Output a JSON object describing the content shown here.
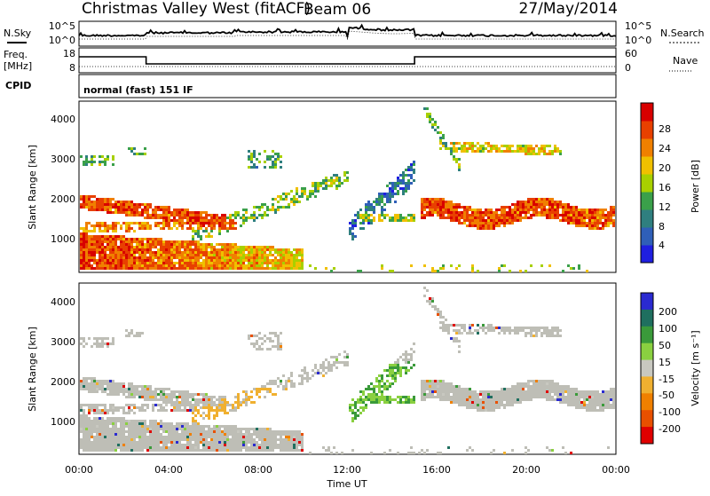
{
  "header": {
    "title": "Christmas Valley West (fitACF)",
    "beam": "Beam 06",
    "date": "27/May/2014"
  },
  "colors": {
    "power_scale": [
      "#1f1fe0",
      "#2f5fb8",
      "#2f7f7f",
      "#3aa04a",
      "#a8d000",
      "#f0c000",
      "#f08000",
      "#e84000",
      "#d80000"
    ],
    "velocity_scale": [
      "#2a2ad0",
      "#1f6f5f",
      "#3a9a3a",
      "#8ad040",
      "#c8c8c0",
      "#f0b030",
      "#f08000",
      "#e85000",
      "#e00000"
    ],
    "ground_scatter": "#bebeb6"
  },
  "chart_data": [
    {
      "type": "line",
      "panel": "sky-search-noise",
      "labels": {
        "left": "N.Sky",
        "right": "N.Search"
      },
      "y_ticks_left": [
        "10^5",
        "10^0"
      ],
      "y_ticks_right": [
        "10^5",
        "10^0"
      ]
    },
    {
      "type": "line",
      "panel": "frequency-nave",
      "labels": {
        "left_top": "Freq.",
        "left_bottom": "[MHz]",
        "right": "Nave"
      },
      "y_ticks_left": [
        "18",
        "8"
      ],
      "y_ticks_right": [
        "60",
        "0"
      ],
      "step_changes_hours": [
        3.0,
        15.0
      ]
    },
    {
      "type": "table",
      "panel": "cpid",
      "label": "CPID",
      "value": "normal (fast) 151 IF"
    },
    {
      "type": "heatmap",
      "panel": "power",
      "ylabel": "Slant Range [km]",
      "yticks": [
        "4000",
        "3000",
        "2000",
        "1000"
      ],
      "ylim": [
        180,
        4500
      ],
      "colorbar_label": "Power [dB]",
      "colorbar_ticks": [
        "28",
        "24",
        "20",
        "16",
        "12",
        "8",
        "4"
      ],
      "features": [
        {
          "name": "early low band",
          "x_start_h": 0.0,
          "x_end_h": 10.0,
          "y_start_km": 300,
          "y_end_km": 1100,
          "level": "high"
        },
        {
          "name": "mid band",
          "x_start_h": 0.0,
          "x_end_h": 6.0,
          "y_start_km": 1200,
          "y_end_km": 2200,
          "level": "high"
        },
        {
          "name": "rising arc",
          "x_start_h": 7.0,
          "x_end_h": 14.0,
          "y_start_km": 1000,
          "y_end_km": 2800,
          "level": "low"
        },
        {
          "name": "late band",
          "x_start_h": 15.2,
          "x_end_h": 24.0,
          "y_start_km": 1400,
          "y_end_km": 2100,
          "level": "high"
        },
        {
          "name": "late upper band",
          "x_start_h": 16.0,
          "x_end_h": 21.5,
          "y_start_km": 3200,
          "y_end_km": 3600,
          "level": "medium"
        }
      ]
    },
    {
      "type": "heatmap",
      "panel": "velocity",
      "ylabel": "Slant Range [km]",
      "yticks": [
        "4000",
        "3000",
        "2000",
        "1000"
      ],
      "ylim": [
        180,
        4500
      ],
      "colorbar_label": "Velocity [m s⁻¹]",
      "colorbar_ticks": [
        "200",
        "100",
        "50",
        "15",
        "-15",
        "-50",
        "-100",
        "-200"
      ],
      "xticks": [
        "00:00",
        "04:00",
        "08:00",
        "12:00",
        "16:00",
        "20:00",
        "00:00"
      ],
      "xlabel": "Time UT",
      "xlim_hours": [
        0,
        24
      ]
    }
  ]
}
